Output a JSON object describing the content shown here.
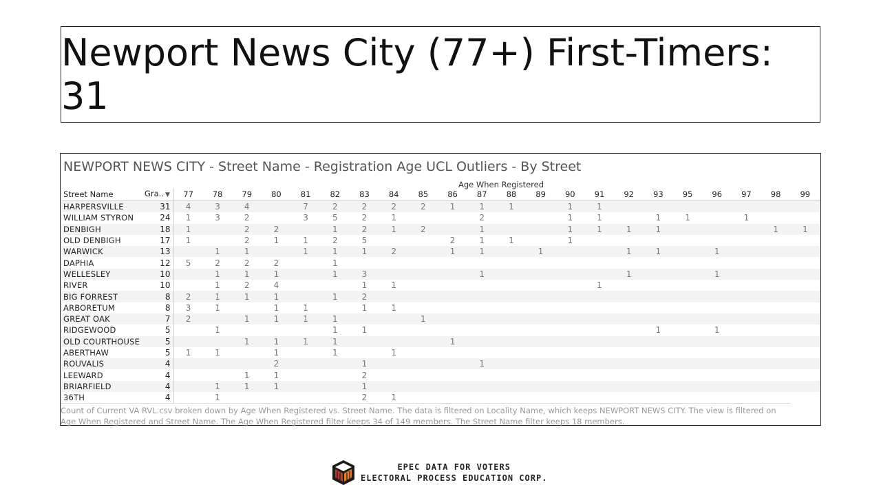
{
  "slide": {
    "title": "Newport News City (77+) First-Timers: 31"
  },
  "viz": {
    "title": "NEWPORT NEWS CITY  - Street Name -  Registration Age UCL Outliers - By Street",
    "column_axis_title": "Age When Registered",
    "row_header": "Street Name",
    "grand_header": "Gra..",
    "sort_icon": "sort-descending-icon",
    "caption": "Count of Current VA RVL.csv broken down by Age When Registered vs. Street Name. The data is filtered on Locality Name, which keeps NEWPORT NEWS CITY. The view is filtered on Age When Registered and Street Name. The Age When Registered filter keeps 34 of 149 members. The Street Name filter keeps 18 members."
  },
  "chart_data": {
    "type": "table",
    "title": "NEWPORT NEWS CITY  - Street Name -  Registration Age UCL Outliers - By Street",
    "column_axis": "Age When Registered",
    "columns": [
      "77",
      "78",
      "79",
      "80",
      "81",
      "82",
      "83",
      "84",
      "85",
      "86",
      "87",
      "88",
      "89",
      "90",
      "91",
      "92",
      "93",
      "95",
      "96",
      "97",
      "98",
      "99"
    ],
    "rows": [
      {
        "street": "HARPERSVILLE",
        "grand": "31",
        "cells": [
          "4",
          "3",
          "4",
          "",
          "7",
          "2",
          "2",
          "2",
          "2",
          "1",
          "1",
          "1",
          "",
          "1",
          "1",
          "",
          "",
          "",
          "",
          "",
          "",
          ""
        ]
      },
      {
        "street": "WILLIAM STYRON",
        "grand": "24",
        "cells": [
          "1",
          "3",
          "2",
          "",
          "3",
          "5",
          "2",
          "1",
          "",
          "",
          "2",
          "",
          "",
          "1",
          "1",
          "",
          "1",
          "1",
          "",
          "1",
          "",
          ""
        ]
      },
      {
        "street": "DENBIGH",
        "grand": "18",
        "cells": [
          "1",
          "",
          "2",
          "2",
          "",
          "1",
          "2",
          "1",
          "2",
          "",
          "1",
          "",
          "",
          "1",
          "1",
          "1",
          "1",
          "",
          "",
          "",
          "1",
          "1"
        ]
      },
      {
        "street": "OLD DENBIGH",
        "grand": "17",
        "cells": [
          "1",
          "",
          "2",
          "1",
          "1",
          "2",
          "5",
          "",
          "",
          "2",
          "1",
          "1",
          "",
          "1",
          "",
          "",
          "",
          "",
          "",
          "",
          "",
          ""
        ]
      },
      {
        "street": "WARWICK",
        "grand": "13",
        "cells": [
          "",
          "1",
          "1",
          "",
          "1",
          "1",
          "1",
          "2",
          "",
          "1",
          "1",
          "",
          "1",
          "",
          "",
          "1",
          "1",
          "",
          "1",
          "",
          "",
          ""
        ]
      },
      {
        "street": "DAPHIA",
        "grand": "12",
        "cells": [
          "5",
          "2",
          "2",
          "2",
          "",
          "1",
          "",
          "",
          "",
          "",
          "",
          "",
          "",
          "",
          "",
          "",
          "",
          "",
          "",
          "",
          "",
          ""
        ]
      },
      {
        "street": "WELLESLEY",
        "grand": "10",
        "cells": [
          "",
          "1",
          "1",
          "1",
          "",
          "1",
          "3",
          "",
          "",
          "",
          "1",
          "",
          "",
          "",
          "",
          "1",
          "",
          "",
          "1",
          "",
          "",
          ""
        ]
      },
      {
        "street": "RIVER",
        "grand": "10",
        "cells": [
          "",
          "1",
          "2",
          "4",
          "",
          "",
          "1",
          "1",
          "",
          "",
          "",
          "",
          "",
          "",
          "1",
          "",
          "",
          "",
          "",
          "",
          "",
          ""
        ]
      },
      {
        "street": "BIG FORREST",
        "grand": "8",
        "cells": [
          "2",
          "1",
          "1",
          "1",
          "",
          "1",
          "2",
          "",
          "",
          "",
          "",
          "",
          "",
          "",
          "",
          "",
          "",
          "",
          "",
          "",
          "",
          ""
        ]
      },
      {
        "street": "ARBORETUM",
        "grand": "8",
        "cells": [
          "3",
          "1",
          "",
          "1",
          "1",
          "",
          "1",
          "1",
          "",
          "",
          "",
          "",
          "",
          "",
          "",
          "",
          "",
          "",
          "",
          "",
          "",
          ""
        ]
      },
      {
        "street": "GREAT OAK",
        "grand": "7",
        "cells": [
          "2",
          "",
          "1",
          "1",
          "1",
          "1",
          "",
          "",
          "1",
          "",
          "",
          "",
          "",
          "",
          "",
          "",
          "",
          "",
          "",
          "",
          "",
          ""
        ]
      },
      {
        "street": "RIDGEWOOD",
        "grand": "5",
        "cells": [
          "",
          "1",
          "",
          "",
          "",
          "1",
          "1",
          "",
          "",
          "",
          "",
          "",
          "",
          "",
          "",
          "",
          "1",
          "",
          "1",
          "",
          "",
          ""
        ]
      },
      {
        "street": "OLD COURTHOUSE",
        "grand": "5",
        "cells": [
          "",
          "",
          "1",
          "1",
          "1",
          "1",
          "",
          "",
          "",
          "1",
          "",
          "",
          "",
          "",
          "",
          "",
          "",
          "",
          "",
          "",
          "",
          ""
        ]
      },
      {
        "street": "ABERTHAW",
        "grand": "5",
        "cells": [
          "1",
          "1",
          "",
          "1",
          "",
          "1",
          "",
          "1",
          "",
          "",
          "",
          "",
          "",
          "",
          "",
          "",
          "",
          "",
          "",
          "",
          "",
          ""
        ]
      },
      {
        "street": "ROUVALIS",
        "grand": "4",
        "cells": [
          "",
          "",
          "",
          "2",
          "",
          "",
          "1",
          "",
          "",
          "",
          "1",
          "",
          "",
          "",
          "",
          "",
          "",
          "",
          "",
          "",
          "",
          ""
        ]
      },
      {
        "street": "LEEWARD",
        "grand": "4",
        "cells": [
          "",
          "",
          "1",
          "1",
          "",
          "",
          "2",
          "",
          "",
          "",
          "",
          "",
          "",
          "",
          "",
          "",
          "",
          "",
          "",
          "",
          "",
          ""
        ]
      },
      {
        "street": "BRIARFIELD",
        "grand": "4",
        "cells": [
          "",
          "1",
          "1",
          "1",
          "",
          "",
          "1",
          "",
          "",
          "",
          "",
          "",
          "",
          "",
          "",
          "",
          "",
          "",
          "",
          "",
          "",
          ""
        ]
      },
      {
        "street": "36TH",
        "grand": "4",
        "cells": [
          "",
          "1",
          "",
          "",
          "",
          "",
          "2",
          "1",
          "",
          "",
          "",
          "",
          "",
          "",
          "",
          "",
          "",
          "",
          "",
          "",
          "",
          ""
        ]
      }
    ]
  },
  "footer": {
    "line1": "EPEC DATA FOR VOTERS",
    "line2": "ELECTORAL PROCESS EDUCATION CORP.",
    "logo_icon": "epec-cube-logo-icon"
  }
}
